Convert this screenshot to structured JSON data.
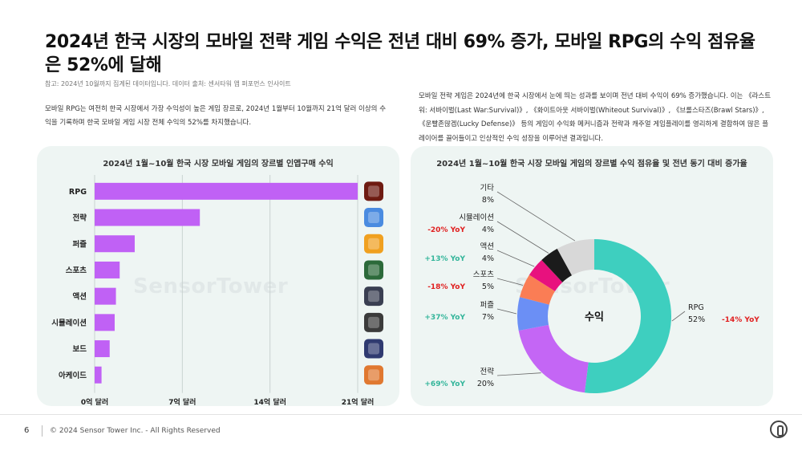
{
  "header": {
    "title": "2024년 한국 시장의 모바일 전략 게임 수익은 전년 대비 69% 증가, 모바일 RPG의 수익 점유율은 52%에 달해",
    "source": "참고: 2024년 10월까지 집계된 데이터입니다. 데이터 출처: 센서타워 앱 퍼포먼스 인사이트"
  },
  "text": {
    "left": "모바일 RPG는 여전히 한국 시장에서 가장 수익성이 높은 게임 장르로, 2024년 1월부터 10월까지 21억 달러 이상의 수익을 기록하며 한국 모바일 게임 시장 전체 수익의 52%를 차지했습니다.",
    "right": "모바일 전략 게임은 2024년에 한국 시장에서 눈에 띄는 성과를 보이며 전년 대비 수익이 69% 증가했습니다. 이는 《라스트 워: 서바이벌(Last War:Survival)》, 《화이트아웃 서바이벌(Whiteout Survival)》, 《브롤스타즈(Brawl Stars)》, 《운빨존많겜(Lucky Defense)》 등의 게임이 수익화 메커니즘과 전략과 캐주얼 게임플레이를 영리하게 결합하여 많은 플레이어를 끌어들이고 인상적인 수익 성장을 이루어낸 결과입니다."
  },
  "watermark": "SensorTower",
  "chart_data": [
    {
      "type": "bar",
      "orientation": "horizontal",
      "title": "2024년 1월~10월 한국 시장 모바일 게임의 장르별 인앱구매 수익",
      "categories": [
        "RPG",
        "전략",
        "퍼즐",
        "스포츠",
        "액션",
        "시뮬레이션",
        "보드",
        "아케이드"
      ],
      "values": [
        2.1,
        0.84,
        0.32,
        0.2,
        0.17,
        0.16,
        0.12,
        0.055
      ],
      "unit": "십억 달러",
      "xlim": [
        0,
        2.1
      ],
      "xticks": [
        "0억 달러",
        "7억 달러",
        "14억 달러",
        "21억 달러"
      ],
      "grid": true,
      "bar_color": "#c061f5",
      "app_icons": [
        "rpg-game-icon",
        "strategy-game-icon",
        "puzzle-game-icon",
        "sports-game-icon",
        "action-game-icon",
        "simulation-game-icon",
        "board-game-icon",
        "arcade-game-icon"
      ]
    },
    {
      "type": "pie",
      "donut": true,
      "title": "2024년 1월~10월 한국 시장 모바일 게임의 장르별 수익 점유율 및 전년 동기 대비 증가율",
      "center_label": "수익",
      "slices": [
        {
          "name": "RPG",
          "value": 52,
          "label": "52%",
          "yoy": "-14% YoY",
          "color": "#3ecfbf"
        },
        {
          "name": "전략",
          "value": 20,
          "label": "20%",
          "yoy": "+69% YoY",
          "color": "#c466f5"
        },
        {
          "name": "퍼즐",
          "value": 7,
          "label": "7%",
          "yoy": "+37% YoY",
          "color": "#6b8ff5"
        },
        {
          "name": "스포츠",
          "value": 5,
          "label": "5%",
          "yoy": "-18% YoY",
          "color": "#fa7d55"
        },
        {
          "name": "액션",
          "value": 4,
          "label": "4%",
          "yoy": "+13% YoY",
          "color": "#e8117e"
        },
        {
          "name": "시뮬레이션",
          "value": 4,
          "label": "4%",
          "yoy": "-20% YoY",
          "color": "#1b1b1b"
        },
        {
          "name": "기타",
          "value": 8,
          "label": "8%",
          "yoy": "",
          "color": "#d8d8d8"
        }
      ],
      "yoy_colors": {
        "positive": "#33b59a",
        "negative": "#e02020"
      }
    }
  ],
  "footer": {
    "page": "6",
    "copyright": "© 2024 Sensor Tower Inc. - All Rights Reserved"
  }
}
